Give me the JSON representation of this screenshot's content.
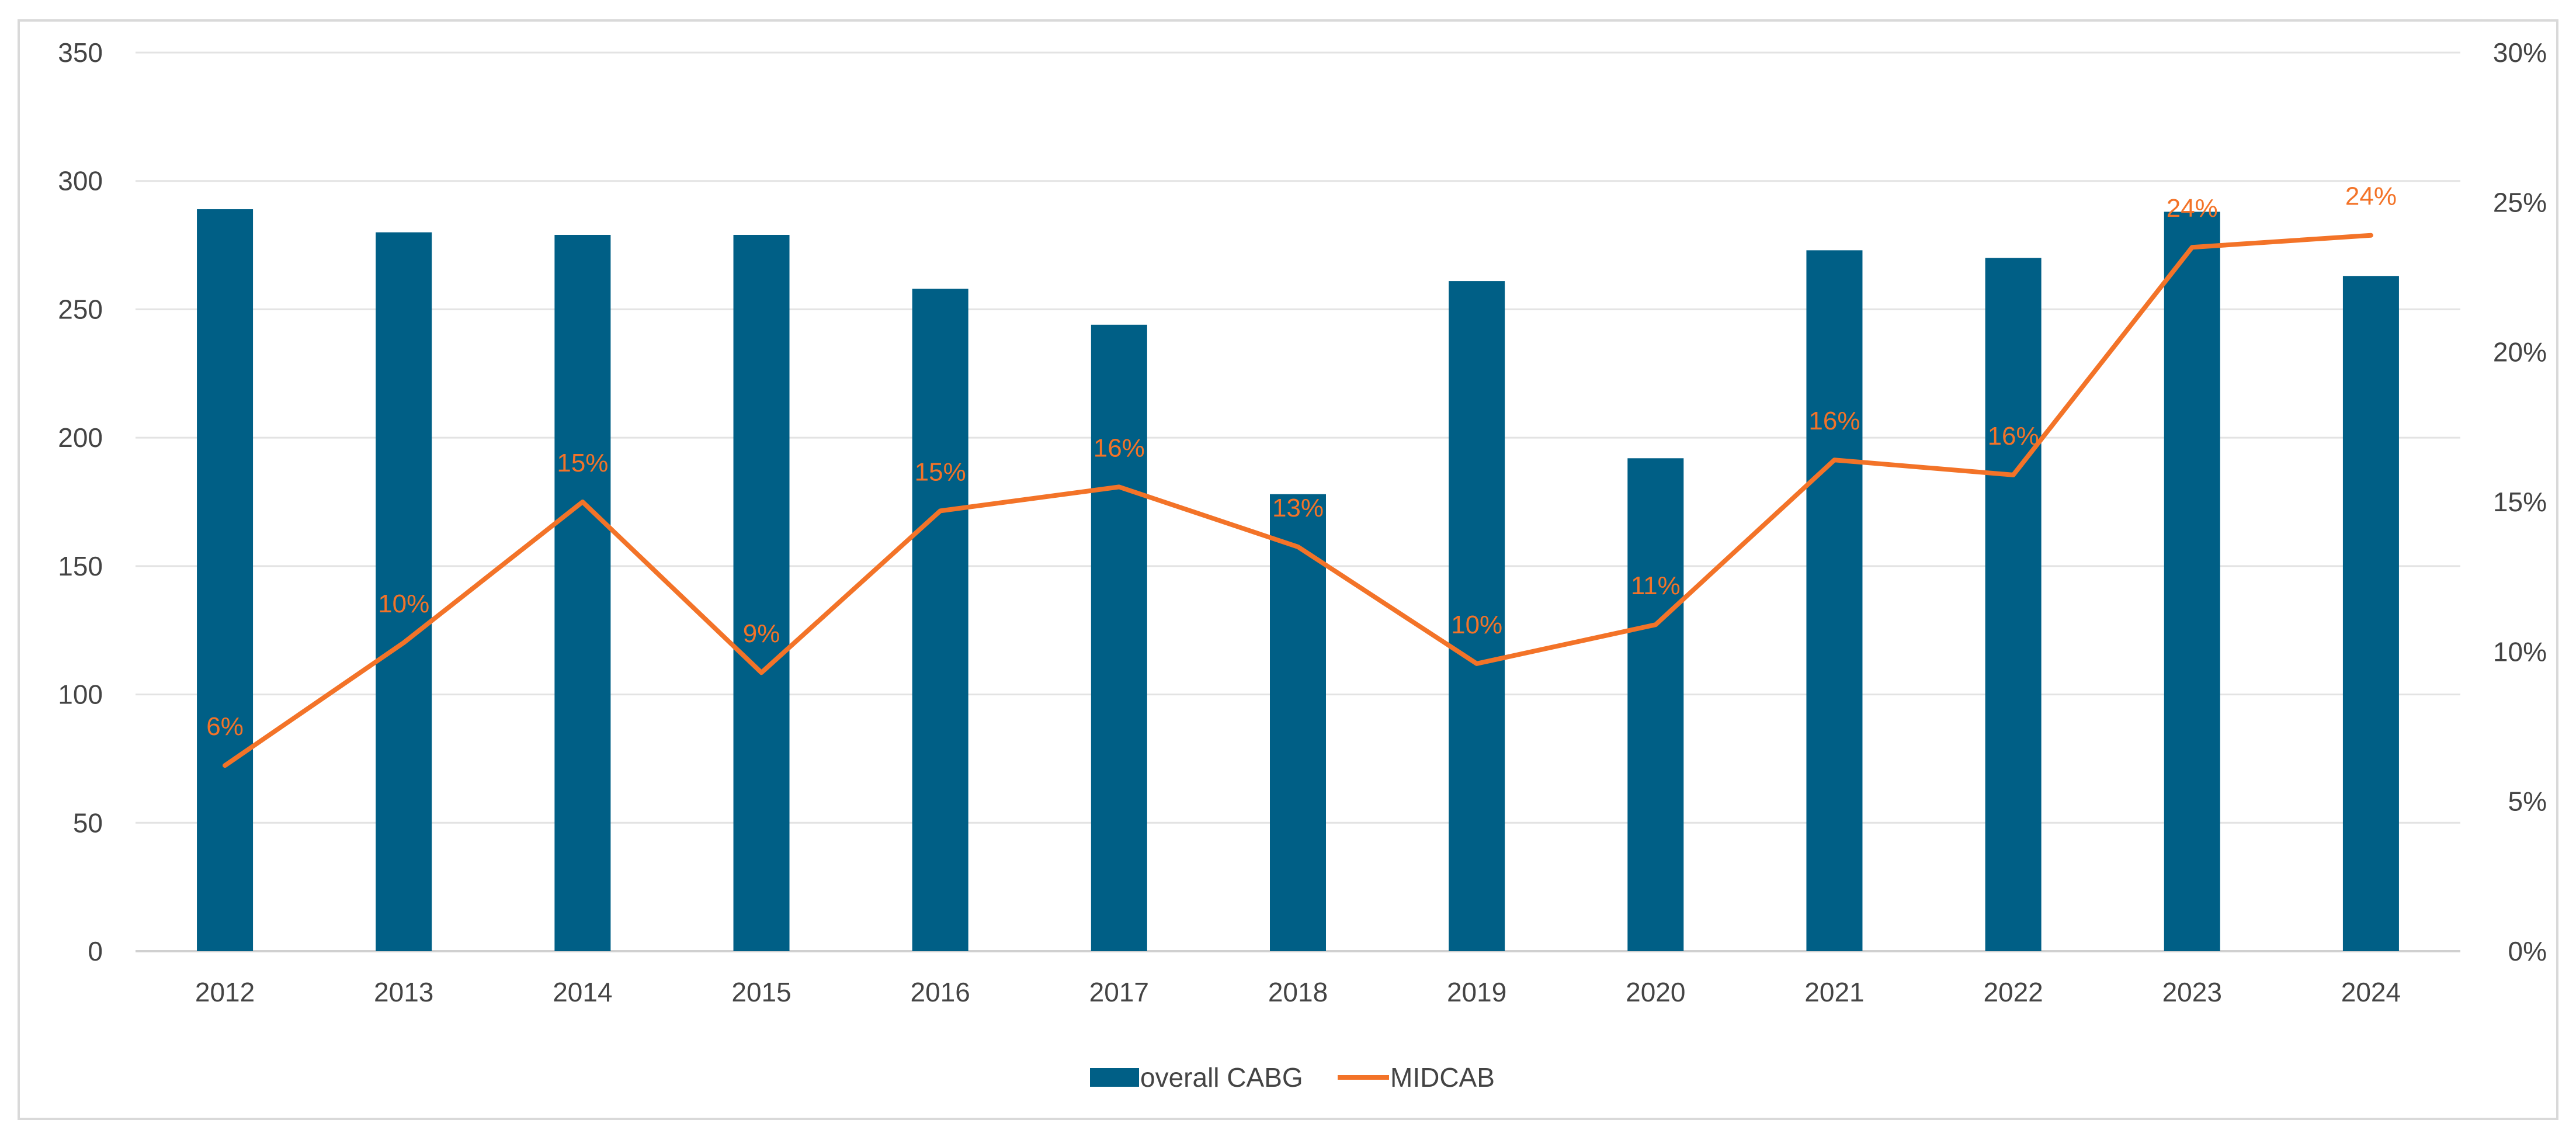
{
  "chart_data": {
    "type": "bar",
    "categories": [
      "2012",
      "2013",
      "2014",
      "2015",
      "2016",
      "2017",
      "2018",
      "2019",
      "2020",
      "2021",
      "2022",
      "2023",
      "2024"
    ],
    "series": [
      {
        "name": "overall CABG",
        "type": "bar",
        "axis": "left",
        "color": "#005f86",
        "values": [
          289,
          280,
          279,
          279,
          258,
          244,
          178,
          261,
          192,
          273,
          270,
          288,
          263
        ]
      },
      {
        "name": "MIDCAB",
        "type": "line",
        "axis": "right",
        "color": "#f37328",
        "values": [
          0.062,
          0.103,
          0.15,
          0.093,
          0.147,
          0.155,
          0.135,
          0.096,
          0.109,
          0.164,
          0.159,
          0.235,
          0.239
        ],
        "data_labels": [
          "6%",
          "10%",
          "15%",
          "9%",
          "15%",
          "16%",
          "13%",
          "10%",
          "11%",
          "16%",
          "16%",
          "24%",
          "24%"
        ]
      }
    ],
    "y_left": {
      "min": 0,
      "max": 350,
      "ticks": [
        "0",
        "50",
        "100",
        "150",
        "200",
        "250",
        "300",
        "350"
      ]
    },
    "y_right": {
      "min": 0,
      "max": 0.3,
      "ticks": [
        "0%",
        "5%",
        "10%",
        "15%",
        "20%",
        "25%",
        "30%"
      ]
    },
    "grid": true,
    "legend_position": "bottom"
  }
}
